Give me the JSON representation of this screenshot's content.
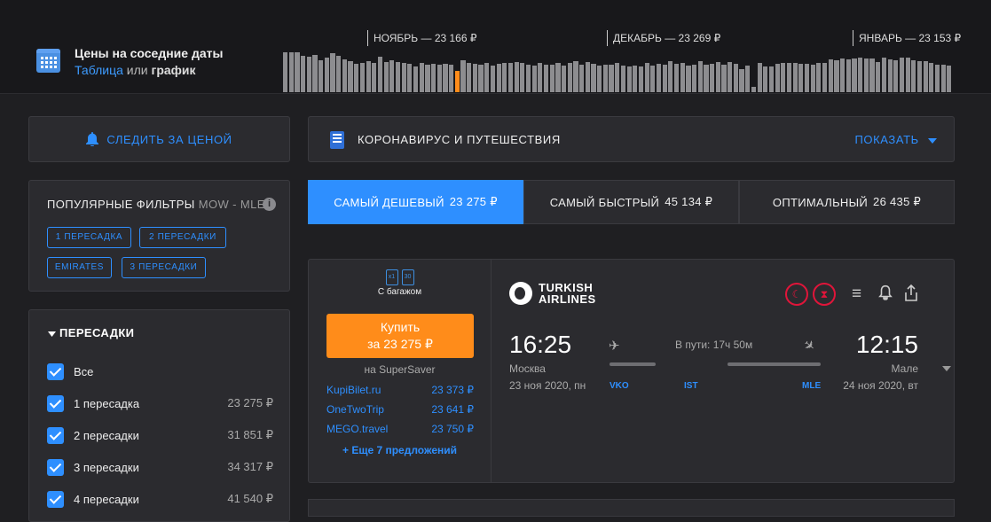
{
  "nearby": {
    "title": "Цены на соседние даты",
    "link_table": "Таблица",
    "or": " или ",
    "link_graph": "график",
    "months": [
      "НОЯБРЬ — 23 166 ₽",
      "ДЕКАБРЬ — 23 269 ₽",
      "ЯНВАРЬ — 23 153 ₽"
    ],
    "selected_bar_index": 29,
    "bar_levels": [
      0.98,
      0.98,
      0.98,
      0.9,
      0.88,
      0.92,
      0.78,
      0.84,
      0.96,
      0.9,
      0.8,
      0.76,
      0.7,
      0.72,
      0.76,
      0.72,
      0.88,
      0.74,
      0.78,
      0.74,
      0.72,
      0.7,
      0.64,
      0.72,
      0.68,
      0.7,
      0.68,
      0.7,
      0.68,
      0.52,
      0.78,
      0.72,
      0.7,
      0.68,
      0.72,
      0.66,
      0.7,
      0.72,
      0.72,
      0.74,
      0.72,
      0.68,
      0.66,
      0.72,
      0.68,
      0.68,
      0.72,
      0.66,
      0.72,
      0.76,
      0.68,
      0.74,
      0.7,
      0.66,
      0.68,
      0.68,
      0.72,
      0.66,
      0.62,
      0.66,
      0.62,
      0.72,
      0.66,
      0.7,
      0.68,
      0.76,
      0.7,
      0.72,
      0.66,
      0.68,
      0.76,
      0.68,
      0.7,
      0.74,
      0.68,
      0.74,
      0.7,
      0.56,
      0.66,
      0.12,
      0.72,
      0.62,
      0.62,
      0.7,
      0.72,
      0.72,
      0.72,
      0.7,
      0.7,
      0.68,
      0.72,
      0.72,
      0.8,
      0.78,
      0.82,
      0.8,
      0.82,
      0.84,
      0.82,
      0.82,
      0.74,
      0.84,
      0.8,
      0.78,
      0.84,
      0.84,
      0.78,
      0.76,
      0.76,
      0.72,
      0.68,
      0.68,
      0.66
    ]
  },
  "follow": {
    "label": "СЛЕДИТЬ ЗА ЦЕНОЙ"
  },
  "corona": {
    "title": "КОРОНАВИРУС И ПУТЕШЕСТВИЯ",
    "show": "ПОКАЗАТЬ"
  },
  "filters": {
    "title": "ПОПУЛЯРНЫЕ ФИЛЬТРЫ",
    "route": "MOW - MLE",
    "info": "i",
    "chips": [
      "1 ПЕРЕСАДКА",
      "2 ПЕРЕСАДКИ",
      "EMIRATES",
      "3 ПЕРЕСАДКИ"
    ]
  },
  "sort_tabs": [
    {
      "label": "САМЫЙ ДЕШЕВЫЙ",
      "price": "23 275 ₽",
      "active": true
    },
    {
      "label": "САМЫЙ БЫСТРЫЙ",
      "price": "45 134 ₽",
      "active": false
    },
    {
      "label": "ОПТИМАЛЬНЫЙ",
      "price": "26 435 ₽",
      "active": false
    }
  ],
  "stops": {
    "title": "ПЕРЕСАДКИ",
    "items": [
      {
        "label": "Все",
        "price": ""
      },
      {
        "label": "1 пересадка",
        "price": "23 275 ₽"
      },
      {
        "label": "2 пересадки",
        "price": "31 851 ₽"
      },
      {
        "label": "3 пересадки",
        "price": "34 317 ₽"
      },
      {
        "label": "4 пересадки",
        "price": "41 540 ₽"
      }
    ]
  },
  "ticket": {
    "baggage": {
      "icon_a": "x1",
      "icon_b": "30",
      "caption": "С багажом"
    },
    "buy_line1": "Купить",
    "buy_line2": "за 23 275 ₽",
    "seller": "на SuperSaver",
    "offers": [
      {
        "agent": "KupiBilet.ru",
        "price": "23 373 ₽"
      },
      {
        "agent": "OneTwoTrip",
        "price": "23 641 ₽"
      },
      {
        "agent": "MEGO.travel",
        "price": "23 750 ₽"
      }
    ],
    "more": "+ Еще 7 предложений",
    "airline_line1": "TURKISH",
    "airline_line2": "AIRLINES",
    "dep_time": "16:25",
    "dep_city": "Москва",
    "dep_date": "23 ноя 2020, пн",
    "duration": "В пути: 17ч 50м",
    "arr_time": "12:15",
    "arr_city": "Мале",
    "arr_date": "24 ноя 2020, вт",
    "airports": [
      "VKO",
      "IST",
      "MLE"
    ]
  }
}
